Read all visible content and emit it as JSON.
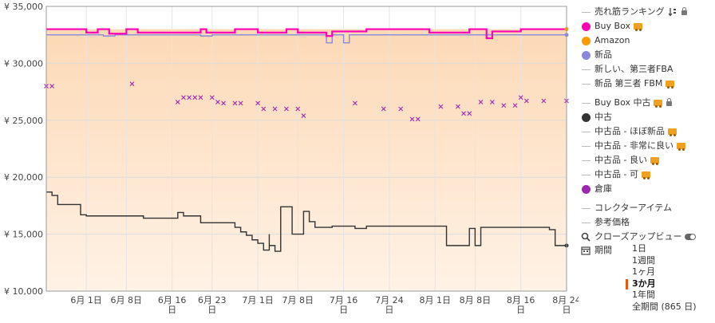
{
  "colors": {
    "buybox": "#ff00b4",
    "amazon": "#ff9900",
    "new": "#8888dd",
    "used": "#333333",
    "warehouse": "#9c27b0",
    "line_gray": "#bbbbbb",
    "bg_top": "#fcd9b6",
    "bg_bottom": "#fff2e6",
    "range_active": "#e8590c"
  },
  "chart_data": {
    "type": "line",
    "x_axis": {
      "type": "date",
      "range": [
        "2024-05-25",
        "2024-08-24"
      ],
      "ticks": [
        {
          "x": "2024-06-01",
          "label": "6月 1日"
        },
        {
          "x": "2024-06-08",
          "label": "6月 8日"
        },
        {
          "x": "2024-06-16",
          "label": "6月 16日"
        },
        {
          "x": "2024-06-23",
          "label": "6月 23日"
        },
        {
          "x": "2024-07-01",
          "label": "7月 1日"
        },
        {
          "x": "2024-07-08",
          "label": "7月 8日"
        },
        {
          "x": "2024-07-16",
          "label": "7月 16日"
        },
        {
          "x": "2024-07-24",
          "label": "7月 24日"
        },
        {
          "x": "2024-08-01",
          "label": "8月 1日"
        },
        {
          "x": "2024-08-08",
          "label": "8月 8日"
        },
        {
          "x": "2024-08-16",
          "label": "8月 16日"
        },
        {
          "x": "2024-08-24",
          "label": "8月 24日"
        }
      ]
    },
    "y_axis": {
      "range": [
        10000,
        35000
      ],
      "ticks": [
        {
          "y": 35000,
          "label": "¥ 35,000"
        },
        {
          "y": 30000,
          "label": "¥ 30,000"
        },
        {
          "y": 25000,
          "label": "¥ 25,000"
        },
        {
          "y": 20000,
          "label": "¥ 20,000"
        },
        {
          "y": 15000,
          "label": "¥ 15,000"
        },
        {
          "y": 10000,
          "label": "¥ 10,000"
        }
      ]
    },
    "grid": true,
    "series": [
      {
        "name": "新品",
        "style": "step",
        "points": [
          [
            "2024-05-25",
            32500
          ],
          [
            "2024-06-04",
            32400
          ],
          [
            "2024-06-06",
            32500
          ],
          [
            "2024-06-20",
            32500
          ],
          [
            "2024-06-21",
            32400
          ],
          [
            "2024-06-23",
            32500
          ],
          [
            "2024-07-12",
            32500
          ],
          [
            "2024-07-13",
            31800
          ],
          [
            "2024-07-14",
            32500
          ],
          [
            "2024-07-16",
            31800
          ],
          [
            "2024-07-17",
            32500
          ],
          [
            "2024-08-24",
            32500
          ]
        ]
      },
      {
        "name": "Buy Box",
        "style": "step",
        "points": [
          [
            "2024-05-25",
            33000
          ],
          [
            "2024-06-01",
            32700
          ],
          [
            "2024-06-03",
            33000
          ],
          [
            "2024-06-05",
            32600
          ],
          [
            "2024-06-08",
            33000
          ],
          [
            "2024-06-10",
            32700
          ],
          [
            "2024-06-20",
            32700
          ],
          [
            "2024-06-21",
            33000
          ],
          [
            "2024-06-22",
            32700
          ],
          [
            "2024-06-26",
            32700
          ],
          [
            "2024-06-27",
            33000
          ],
          [
            "2024-07-01",
            32700
          ],
          [
            "2024-07-06",
            33000
          ],
          [
            "2024-07-08",
            32700
          ],
          [
            "2024-07-12",
            32700
          ],
          [
            "2024-07-13",
            32400
          ],
          [
            "2024-07-14",
            32800
          ],
          [
            "2024-07-20",
            33000
          ],
          [
            "2024-07-31",
            32700
          ],
          [
            "2024-08-06",
            32700
          ],
          [
            "2024-08-07",
            33000
          ],
          [
            "2024-08-10",
            32200
          ],
          [
            "2024-08-11",
            32800
          ],
          [
            "2024-08-16",
            33000
          ],
          [
            "2024-08-24",
            33000
          ]
        ]
      },
      {
        "name": "中古",
        "style": "step",
        "points": [
          [
            "2024-05-25",
            18700
          ],
          [
            "2024-05-26",
            18400
          ],
          [
            "2024-05-27",
            17600
          ],
          [
            "2024-05-30",
            17600
          ],
          [
            "2024-05-31",
            16700
          ],
          [
            "2024-06-01",
            16600
          ],
          [
            "2024-06-10",
            16600
          ],
          [
            "2024-06-11",
            16400
          ],
          [
            "2024-06-16",
            16400
          ],
          [
            "2024-06-17",
            16900
          ],
          [
            "2024-06-18",
            16600
          ],
          [
            "2024-06-20",
            16600
          ],
          [
            "2024-06-21",
            16000
          ],
          [
            "2024-06-26",
            16000
          ],
          [
            "2024-06-27",
            15600
          ],
          [
            "2024-06-28",
            15200
          ],
          [
            "2024-06-29",
            14900
          ],
          [
            "2024-06-30",
            14500
          ],
          [
            "2024-07-01",
            14200
          ],
          [
            "2024-07-02",
            13600
          ],
          [
            "2024-07-03",
            15000
          ],
          [
            "2024-07-03",
            14000
          ],
          [
            "2024-07-04",
            13500
          ],
          [
            "2024-07-05",
            17400
          ],
          [
            "2024-07-07",
            15000
          ],
          [
            "2024-07-09",
            17000
          ],
          [
            "2024-07-10",
            16100
          ],
          [
            "2024-07-11",
            15600
          ],
          [
            "2024-07-14",
            15700
          ],
          [
            "2024-07-18",
            15500
          ],
          [
            "2024-07-20",
            15700
          ],
          [
            "2024-08-02",
            15700
          ],
          [
            "2024-08-03",
            14000
          ],
          [
            "2024-08-06",
            14000
          ],
          [
            "2024-08-07",
            15500
          ],
          [
            "2024-08-08",
            14000
          ],
          [
            "2024-08-09",
            15600
          ],
          [
            "2024-08-20",
            15600
          ],
          [
            "2024-08-21",
            15400
          ],
          [
            "2024-08-22",
            14000
          ],
          [
            "2024-08-24",
            14000
          ]
        ]
      },
      {
        "name": "倉庫",
        "style": "marker-x",
        "points": [
          [
            "2024-05-25",
            28000
          ],
          [
            "2024-05-26",
            28000
          ],
          [
            "2024-06-09",
            28200
          ],
          [
            "2024-06-17",
            26600
          ],
          [
            "2024-06-18",
            27000
          ],
          [
            "2024-06-19",
            27000
          ],
          [
            "2024-06-20",
            27000
          ],
          [
            "2024-06-21",
            27000
          ],
          [
            "2024-06-23",
            27000
          ],
          [
            "2024-06-24",
            26600
          ],
          [
            "2024-06-25",
            26500
          ],
          [
            "2024-06-27",
            26500
          ],
          [
            "2024-06-28",
            26500
          ],
          [
            "2024-07-01",
            26500
          ],
          [
            "2024-07-02",
            26000
          ],
          [
            "2024-07-04",
            26000
          ],
          [
            "2024-07-06",
            26000
          ],
          [
            "2024-07-08",
            26000
          ],
          [
            "2024-07-09",
            25400
          ],
          [
            "2024-07-18",
            26500
          ],
          [
            "2024-07-23",
            26000
          ],
          [
            "2024-07-26",
            26000
          ],
          [
            "2024-07-28",
            25100
          ],
          [
            "2024-07-29",
            25100
          ],
          [
            "2024-08-02",
            26200
          ],
          [
            "2024-08-05",
            26200
          ],
          [
            "2024-08-06",
            25600
          ],
          [
            "2024-08-07",
            25600
          ],
          [
            "2024-08-09",
            26600
          ],
          [
            "2024-08-11",
            26600
          ],
          [
            "2024-08-13",
            26300
          ],
          [
            "2024-08-15",
            26300
          ],
          [
            "2024-08-16",
            27000
          ],
          [
            "2024-08-17",
            26700
          ],
          [
            "2024-08-20",
            26700
          ],
          [
            "2024-08-24",
            26700
          ]
        ]
      }
    ],
    "end_markers": [
      {
        "series": "Amazon",
        "x": "2024-08-24",
        "y": 33000
      },
      {
        "series": "新品",
        "x": "2024-08-24",
        "y": 32500
      },
      {
        "series": "中古",
        "x": "2024-08-24",
        "y": 14000
      }
    ]
  },
  "legend": {
    "items": [
      {
        "key": "sales_rank",
        "label": "売れ筋ランキング",
        "symbol": "line",
        "color": "#bbbbbb",
        "suffix_icon": "sort-icon",
        "lock": true
      },
      {
        "key": "buybox",
        "label": "Buy Box",
        "symbol": "dot",
        "color": "#ff00b4",
        "truck": true
      },
      {
        "key": "amazon",
        "label": "Amazon",
        "symbol": "dot",
        "color": "#ff9900"
      },
      {
        "key": "new",
        "label": "新品",
        "symbol": "dot",
        "color": "#8888dd"
      },
      {
        "key": "new_fba",
        "label": "新しい、第三者FBA",
        "symbol": "line",
        "color": "#bbbbbb"
      },
      {
        "key": "new_fbm",
        "label": "新品 第三者 FBM",
        "symbol": "line",
        "color": "#bbbbbb",
        "truck": true
      },
      {
        "key": "gap1",
        "gap": true
      },
      {
        "key": "buybox_used",
        "label": "Buy Box 中古",
        "symbol": "line",
        "color": "#bbbbbb",
        "truck": true,
        "lock": true
      },
      {
        "key": "used",
        "label": "中古",
        "symbol": "dot",
        "color": "#333333"
      },
      {
        "key": "used_like_new",
        "label": "中古品 - ほぼ新品",
        "symbol": "line",
        "color": "#bbbbbb",
        "truck": true
      },
      {
        "key": "used_very_good",
        "label": "中古品 - 非常に良い",
        "symbol": "line",
        "color": "#bbbbbb",
        "truck": true
      },
      {
        "key": "used_good",
        "label": "中古品 - 良い",
        "symbol": "line",
        "color": "#bbbbbb",
        "truck": true
      },
      {
        "key": "used_acceptable",
        "label": "中古品 - 可",
        "symbol": "line",
        "color": "#bbbbbb",
        "truck": true
      },
      {
        "key": "warehouse",
        "label": "倉庫",
        "symbol": "dot",
        "color": "#9c27b0"
      },
      {
        "key": "gap2",
        "gap": true
      },
      {
        "key": "collectible",
        "label": "コレクターアイテム",
        "symbol": "line",
        "color": "#bbbbbb"
      },
      {
        "key": "list_price",
        "label": "参考価格",
        "symbol": "line",
        "color": "#bbbbbb"
      }
    ]
  },
  "controls": {
    "closeup_label": "クローズアップビュー",
    "period_label": "期間",
    "ranges": [
      {
        "label": "1日",
        "active": false
      },
      {
        "label": "1週間",
        "active": false
      },
      {
        "label": "1ヶ月",
        "active": false
      },
      {
        "label": "3か月",
        "active": true
      },
      {
        "label": "1年間",
        "active": false
      },
      {
        "label": "全期間 (865 日)",
        "active": false
      }
    ]
  }
}
